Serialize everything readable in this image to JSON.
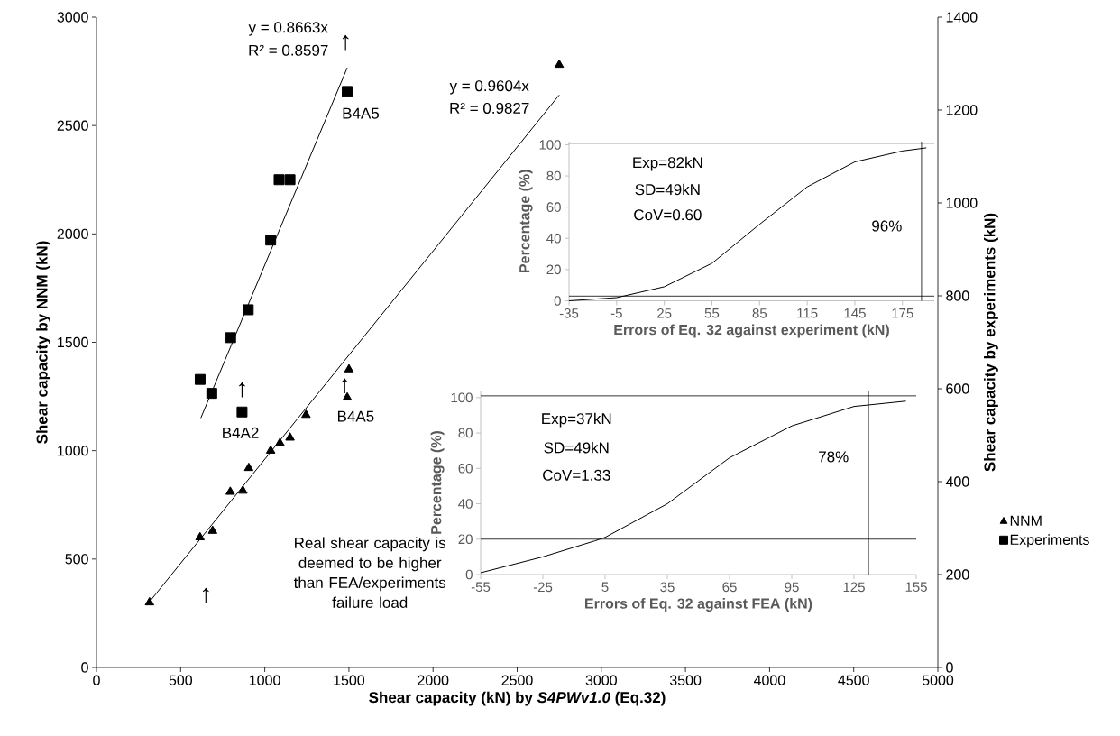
{
  "chart_data": [
    {
      "type": "scatter",
      "xlabel": "Shear capacity (kN) by *S4PWv1.0* (Eq.32)",
      "ylabel": "Shear capacity by NNM (kN)",
      "y2label": "Shear capacity by experiments (kN)",
      "xlim": [
        0,
        5000
      ],
      "xticks": [
        0,
        500,
        1000,
        1500,
        2000,
        2500,
        3000,
        3500,
        4000,
        4500,
        5000
      ],
      "ylim": [
        0,
        3000
      ],
      "yticks": [
        0,
        500,
        1000,
        1500,
        2000,
        2500,
        3000
      ],
      "y2lim": [
        0,
        1400
      ],
      "y2ticks": [
        0,
        200,
        400,
        600,
        800,
        1000,
        1200,
        1400
      ],
      "grid": false,
      "legend": "right",
      "series": [
        {
          "name": "NNM",
          "type": "scatter",
          "marker": "triangle",
          "color": "#000000",
          "x": [
            315,
            615,
            690,
            795,
            870,
            905,
            1035,
            1090,
            1150,
            1245,
            1490,
            1500,
            2750
          ],
          "values": [
            300,
            600,
            630,
            810,
            815,
            920,
            1000,
            1035,
            1060,
            1165,
            1245,
            1375,
            2780
          ]
        },
        {
          "name": "Experiments",
          "type": "scatter",
          "marker": "square",
          "axis": "y2",
          "color": "#000000",
          "x": [
            616,
            685,
            865,
            797,
            902,
            1035,
            1085,
            1150,
            1490
          ],
          "values": [
            620,
            590,
            550,
            710,
            770,
            920,
            1050,
            1050,
            1240
          ]
        },
        {
          "type": "line",
          "marker": "none",
          "color": "#000000",
          "x": [
            310,
            2750
          ],
          "values": [
            298,
            2641
          ]
        },
        {
          "type": "line",
          "marker": "none",
          "axis": "y2",
          "color": "#000000",
          "x": [
            620,
            1490
          ],
          "values": [
            537,
            1291
          ]
        }
      ],
      "annotations": [
        "y = 0.8663x",
        "R² = 0.8597",
        "y = 0.9604x",
        "R² = 0.9827",
        "B4A5",
        "B4A2",
        "B4A5",
        "↑",
        "↑",
        "↑",
        "↑",
        "Real shear capacity is deemed to be higher than FEA/experiments failure load"
      ]
    },
    {
      "type": "line",
      "xlabel": "Errors  of  Eq. 32 against experiment (kN)",
      "ylabel": "Percentage (%)",
      "xlim": [
        -35,
        195
      ],
      "xticks": [
        -35,
        -5,
        25,
        55,
        85,
        115,
        145,
        175
      ],
      "ylim": [
        0,
        102
      ],
      "yticks": [
        0,
        20,
        40,
        60,
        80,
        100
      ],
      "series": [
        {
          "color": "#000000",
          "x": [
            -35,
            -5,
            25,
            55,
            85,
            115,
            145,
            175,
            190
          ],
          "values": [
            0,
            2,
            9,
            24,
            49,
            73,
            89,
            96,
            98
          ]
        }
      ],
      "ref_lines": [
        {
          "axis": "y",
          "value": 101
        },
        {
          "axis": "y",
          "value": 3
        },
        {
          "axis": "x",
          "value": 187
        }
      ],
      "annotations": [
        "Exp=82kN",
        "SD=49kN",
        "CoV=0.60",
        "96%"
      ]
    },
    {
      "type": "line",
      "xlabel": "Errors  of  Eq. 32   against FEA (kN)",
      "ylabel": "Percentage (%)",
      "xlim": [
        -55,
        155
      ],
      "xticks": [
        -55,
        -25,
        5,
        35,
        65,
        95,
        125,
        155
      ],
      "ylim": [
        0,
        104
      ],
      "yticks": [
        0,
        20,
        40,
        60,
        80,
        100
      ],
      "series": [
        {
          "color": "#000000",
          "x": [
            -55,
            -25,
            0,
            5,
            35,
            65,
            95,
            125,
            150
          ],
          "values": [
            1,
            10,
            19,
            21,
            40,
            66,
            84,
            95,
            98
          ]
        }
      ],
      "ref_lines": [
        {
          "axis": "y",
          "value": 101
        },
        {
          "axis": "y",
          "value": 20
        },
        {
          "axis": "x",
          "value": 132
        }
      ],
      "annotations": [
        "Exp=37kN",
        "SD=49kN",
        "CoV=1.33",
        "78%"
      ]
    }
  ]
}
